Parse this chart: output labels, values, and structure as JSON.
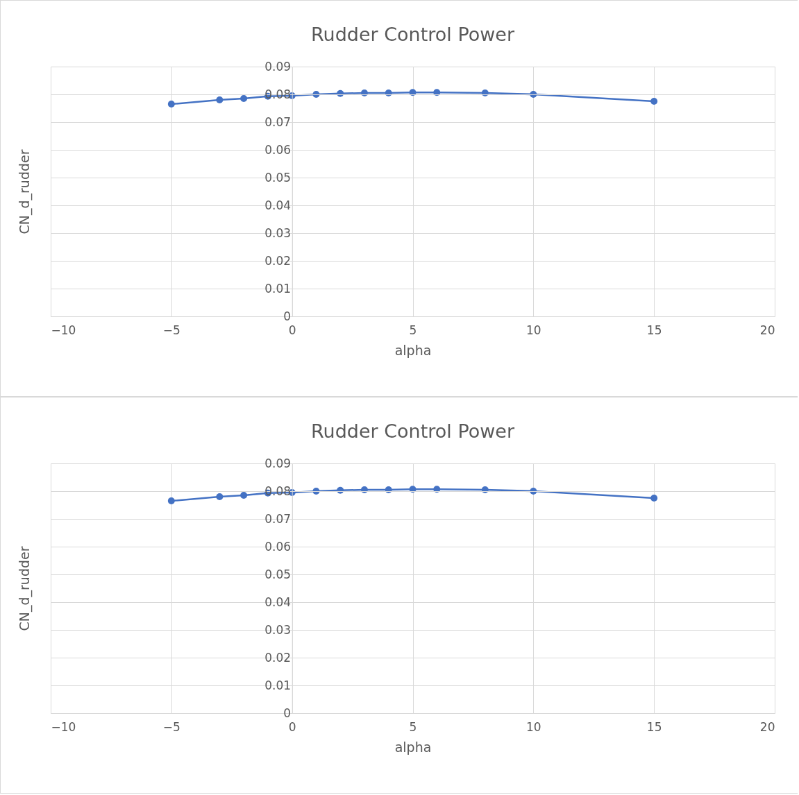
{
  "chart_data": [
    {
      "type": "line",
      "title": "Rudder Control Power",
      "xlabel": "alpha",
      "ylabel": "CN_d_rudder",
      "x": [
        -5,
        -3,
        -2,
        -1,
        0,
        1,
        2,
        3,
        4,
        5,
        6,
        8,
        10,
        15
      ],
      "series": [
        {
          "color": "#4472c4",
          "values": [
            0.0765,
            0.078,
            0.0785,
            0.0793,
            0.0795,
            0.08,
            0.0803,
            0.0805,
            0.0805,
            0.0807,
            0.0807,
            0.0805,
            0.08,
            0.0775
          ]
        }
      ],
      "xlim": [
        -10,
        20
      ],
      "xticks": [
        -10,
        -5,
        0,
        5,
        10,
        15,
        20
      ],
      "ylim": [
        0,
        0.09
      ],
      "yticks": [
        0,
        0.01,
        0.02,
        0.03,
        0.04,
        0.05,
        0.06,
        0.07,
        0.08,
        0.09
      ],
      "grid": true,
      "marker": "circle",
      "line_style": "solid"
    },
    {
      "type": "line",
      "title": "Rudder Control Power",
      "xlabel": "alpha",
      "ylabel": "CN_d_rudder",
      "x": [
        -5,
        -3,
        -2,
        -1,
        0,
        1,
        2,
        3,
        4,
        5,
        6,
        8,
        10,
        15
      ],
      "series": [
        {
          "color": "#4472c4",
          "values": [
            0.0765,
            0.078,
            0.0785,
            0.0793,
            0.0795,
            0.08,
            0.0803,
            0.0805,
            0.0805,
            0.0807,
            0.0807,
            0.0805,
            0.08,
            0.0775
          ]
        }
      ],
      "xlim": [
        -10,
        20
      ],
      "xticks": [
        -10,
        -5,
        0,
        5,
        10,
        15,
        20
      ],
      "ylim": [
        0,
        0.09
      ],
      "yticks": [
        0,
        0.01,
        0.02,
        0.03,
        0.04,
        0.05,
        0.06,
        0.07,
        0.08,
        0.09
      ],
      "grid": true,
      "marker": "circle",
      "line_style": "solid"
    }
  ]
}
